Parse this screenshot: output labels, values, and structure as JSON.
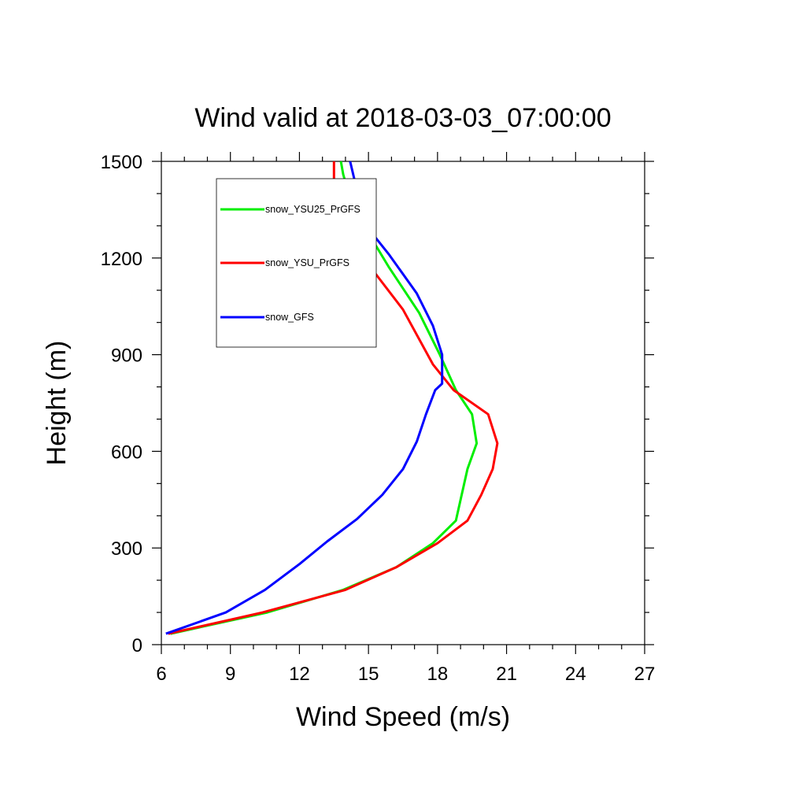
{
  "chart_data": {
    "type": "line",
    "title": "Wind valid at 2018-03-03_07:00:00",
    "xlabel": "Wind Speed (m/s)",
    "ylabel": "Height (m)",
    "xlim": [
      6,
      27
    ],
    "ylim": [
      0,
      1500
    ],
    "xticks": [
      6,
      9,
      12,
      15,
      18,
      21,
      24,
      27
    ],
    "yticks": [
      0,
      300,
      600,
      900,
      1200,
      1500
    ],
    "x_minor_step": 1,
    "y_minor_step": 100,
    "grid": false,
    "legend_position": "top-left",
    "series": [
      {
        "name": "snow_YSU25_PrGFS",
        "color": "#00ee00",
        "x": [
          6.4,
          10.6,
          13.9,
          16.2,
          17.8,
          18.8,
          19.3,
          19.7,
          19.5,
          18.8,
          18.1,
          17.2,
          15.9,
          14.8,
          14.4,
          14.1,
          13.9,
          13.8
        ],
        "y": [
          34,
          100,
          170,
          240,
          315,
          385,
          545,
          625,
          715,
          790,
          900,
          1030,
          1170,
          1300,
          1360,
          1410,
          1460,
          1500
        ]
      },
      {
        "name": "snow_YSU_PrGFS",
        "color": "#ff0000",
        "x": [
          6.3,
          10.4,
          14.0,
          16.2,
          18.0,
          19.3,
          19.9,
          20.4,
          20.6,
          20.2,
          18.7,
          17.8,
          16.5,
          15.0,
          13.5,
          13.5,
          13.5
        ],
        "y": [
          34,
          100,
          170,
          240,
          315,
          385,
          465,
          545,
          625,
          715,
          790,
          870,
          1040,
          1180,
          1300,
          1400,
          1500
        ]
      },
      {
        "name": "snow_GFS",
        "color": "#0000ff",
        "x": [
          6.2,
          8.8,
          10.5,
          12.0,
          13.2,
          14.5,
          15.6,
          16.5,
          17.1,
          17.5,
          17.9,
          18.2,
          18.2,
          17.8,
          17.1,
          15.9,
          14.9,
          14.5,
          14.2
        ],
        "y": [
          34,
          100,
          170,
          250,
          320,
          390,
          465,
          545,
          630,
          715,
          790,
          810,
          900,
          990,
          1090,
          1210,
          1300,
          1410,
          1500
        ]
      }
    ]
  }
}
